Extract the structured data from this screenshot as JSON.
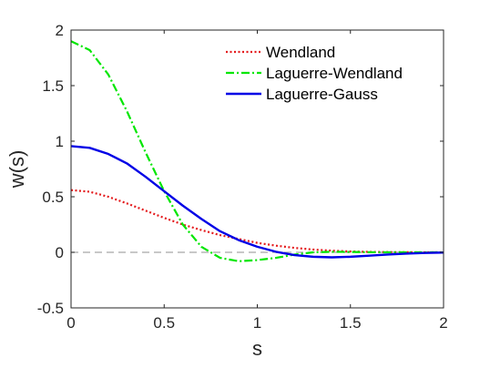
{
  "chart_data": {
    "type": "line",
    "title": "",
    "xlabel": "s",
    "ylabel": "w(s)",
    "xlim": [
      0,
      2
    ],
    "ylim": [
      -0.5,
      2
    ],
    "xticks": [
      0,
      0.5,
      1,
      1.5,
      2
    ],
    "xtick_labels": [
      "0",
      "0.5",
      "1",
      "1.5",
      "2"
    ],
    "yticks": [
      -0.5,
      0,
      0.5,
      1,
      1.5,
      2
    ],
    "ytick_labels": [
      "-0.5",
      "0",
      "0.5",
      "1",
      "1.5",
      "2"
    ],
    "grid": false,
    "legend_position": "top-right",
    "reference_line": {
      "y": 0,
      "color": "#a6a6a6",
      "style": "dashed"
    },
    "series": [
      {
        "name": "Wendland",
        "color": "#e41a1c",
        "style": "dotted",
        "x": [
          0,
          0.1,
          0.2,
          0.3,
          0.4,
          0.5,
          0.6,
          0.7,
          0.8,
          0.9,
          1.0,
          1.1,
          1.2,
          1.3,
          1.4,
          1.5,
          1.6,
          1.7,
          1.8,
          1.9,
          2.0
        ],
        "y": [
          0.56,
          0.545,
          0.5,
          0.44,
          0.375,
          0.31,
          0.25,
          0.2,
          0.155,
          0.12,
          0.085,
          0.06,
          0.04,
          0.025,
          0.015,
          0.008,
          0.004,
          0.002,
          0.001,
          0,
          0
        ]
      },
      {
        "name": "Laguerre-Wendland",
        "color": "#00e600",
        "style": "dashdot",
        "x": [
          0,
          0.1,
          0.2,
          0.3,
          0.4,
          0.5,
          0.6,
          0.7,
          0.8,
          0.9,
          1.0,
          1.1,
          1.2,
          1.3,
          1.4,
          1.5,
          1.6,
          1.7,
          1.8,
          1.9,
          2.0
        ],
        "y": [
          1.9,
          1.82,
          1.6,
          1.27,
          0.9,
          0.55,
          0.25,
          0.05,
          -0.05,
          -0.08,
          -0.07,
          -0.05,
          -0.02,
          0,
          0.005,
          0.003,
          0.001,
          0,
          0,
          0,
          0
        ]
      },
      {
        "name": "Laguerre-Gauss",
        "color": "#0000e6",
        "style": "solid",
        "x": [
          0,
          0.1,
          0.2,
          0.3,
          0.4,
          0.5,
          0.6,
          0.7,
          0.8,
          0.9,
          1.0,
          1.1,
          1.2,
          1.3,
          1.4,
          1.5,
          1.6,
          1.7,
          1.8,
          1.9,
          2.0
        ],
        "y": [
          0.955,
          0.94,
          0.885,
          0.8,
          0.68,
          0.55,
          0.42,
          0.3,
          0.19,
          0.11,
          0.05,
          0.005,
          -0.025,
          -0.04,
          -0.045,
          -0.04,
          -0.03,
          -0.02,
          -0.012,
          -0.006,
          -0.002
        ]
      }
    ]
  }
}
